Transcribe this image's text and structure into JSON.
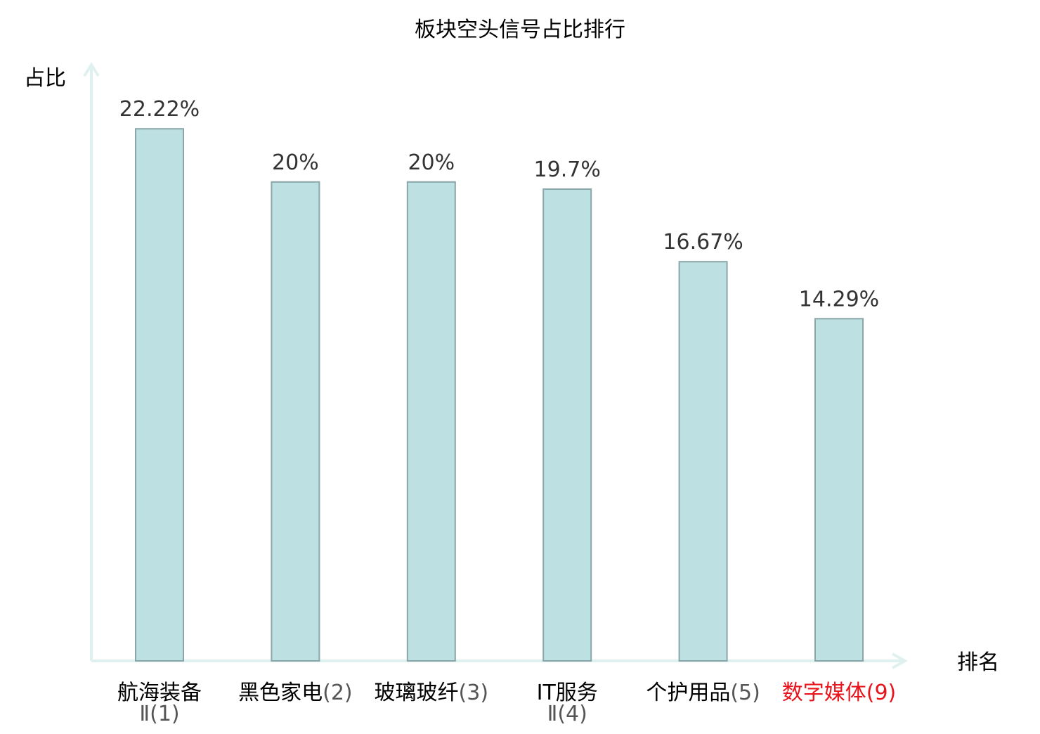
{
  "chart_data": {
    "type": "bar",
    "title": "板块空头信号占比排行",
    "ylabel": "占比",
    "xlabel": "排名",
    "ylim": [
      0,
      23
    ],
    "grid": false,
    "categories": [
      {
        "name": "航海装备Ⅱ",
        "rank": "(1)",
        "highlight": false
      },
      {
        "name": "黑色家电",
        "rank": "(2)",
        "highlight": false
      },
      {
        "name": "玻璃玻纤",
        "rank": "(3)",
        "highlight": false
      },
      {
        "name": "IT服务Ⅱ",
        "rank": "(4)",
        "highlight": false
      },
      {
        "name": "个护用品",
        "rank": "(5)",
        "highlight": false
      },
      {
        "name": "数字媒体",
        "rank": "(9)",
        "highlight": true
      }
    ],
    "values": [
      22.22,
      20,
      20,
      19.7,
      16.67,
      14.29
    ],
    "value_labels": [
      "22.22%",
      "20%",
      "20%",
      "19.7%",
      "16.67%",
      "14.29%"
    ],
    "colors": {
      "bar_fill": "#bde0e3",
      "bar_stroke": "#8aa6a8",
      "axis": "#dff1ef",
      "text": "#000000",
      "value_text": "#333333",
      "rank_text": "#555555",
      "highlight": "#e8141b"
    }
  }
}
